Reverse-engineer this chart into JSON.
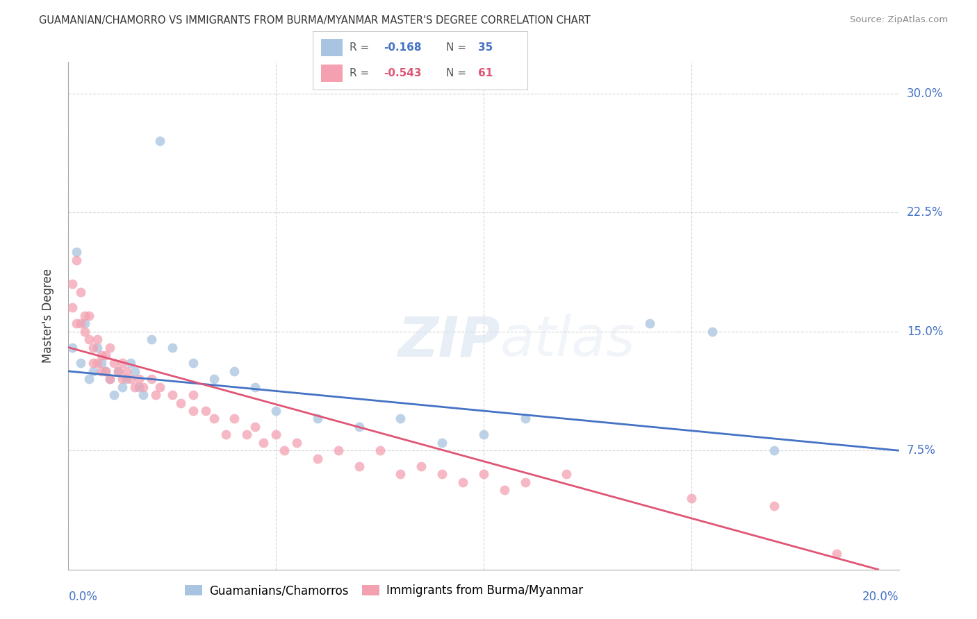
{
  "title": "GUAMANIAN/CHAMORRO VS IMMIGRANTS FROM BURMA/MYANMAR MASTER'S DEGREE CORRELATION CHART",
  "source": "Source: ZipAtlas.com",
  "xlabel_blue": "0.0%",
  "xlabel_pink": "20.0%",
  "ylabel": "Master's Degree",
  "ytick_labels": [
    "7.5%",
    "15.0%",
    "22.5%",
    "30.0%"
  ],
  "ytick_values": [
    0.075,
    0.15,
    0.225,
    0.3
  ],
  "xlim": [
    0.0,
    0.2
  ],
  "ylim": [
    0.0,
    0.32
  ],
  "legend_blue_r": "-0.168",
  "legend_blue_n": "35",
  "legend_pink_r": "-0.543",
  "legend_pink_n": "61",
  "legend_label_blue": "Guamanians/Chamorros",
  "legend_label_pink": "Immigrants from Burma/Myanmar",
  "blue_color": "#a8c4e0",
  "pink_color": "#f4a0b0",
  "trendline_blue": "#4472c4",
  "trendline_pink": "#e05575",
  "blue_scatter_x": [
    0.001,
    0.002,
    0.003,
    0.004,
    0.005,
    0.006,
    0.007,
    0.008,
    0.009,
    0.01,
    0.011,
    0.012,
    0.013,
    0.014,
    0.015,
    0.016,
    0.017,
    0.018,
    0.02,
    0.022,
    0.025,
    0.03,
    0.035,
    0.04,
    0.045,
    0.05,
    0.06,
    0.07,
    0.08,
    0.09,
    0.1,
    0.11,
    0.14,
    0.155,
    0.17
  ],
  "blue_scatter_y": [
    0.14,
    0.2,
    0.13,
    0.155,
    0.12,
    0.125,
    0.14,
    0.13,
    0.125,
    0.12,
    0.11,
    0.125,
    0.115,
    0.12,
    0.13,
    0.125,
    0.115,
    0.11,
    0.145,
    0.27,
    0.14,
    0.13,
    0.12,
    0.125,
    0.115,
    0.1,
    0.095,
    0.09,
    0.095,
    0.08,
    0.085,
    0.095,
    0.155,
    0.15,
    0.075
  ],
  "pink_scatter_x": [
    0.001,
    0.001,
    0.002,
    0.002,
    0.003,
    0.003,
    0.004,
    0.004,
    0.005,
    0.005,
    0.006,
    0.006,
    0.007,
    0.007,
    0.008,
    0.008,
    0.009,
    0.009,
    0.01,
    0.01,
    0.011,
    0.012,
    0.013,
    0.013,
    0.014,
    0.015,
    0.016,
    0.017,
    0.018,
    0.02,
    0.021,
    0.022,
    0.025,
    0.027,
    0.03,
    0.03,
    0.033,
    0.035,
    0.038,
    0.04,
    0.043,
    0.045,
    0.047,
    0.05,
    0.052,
    0.055,
    0.06,
    0.065,
    0.07,
    0.075,
    0.08,
    0.085,
    0.09,
    0.095,
    0.1,
    0.105,
    0.11,
    0.12,
    0.15,
    0.17,
    0.185
  ],
  "pink_scatter_y": [
    0.18,
    0.165,
    0.195,
    0.155,
    0.175,
    0.155,
    0.16,
    0.15,
    0.16,
    0.145,
    0.14,
    0.13,
    0.145,
    0.13,
    0.135,
    0.125,
    0.135,
    0.125,
    0.14,
    0.12,
    0.13,
    0.125,
    0.13,
    0.12,
    0.125,
    0.12,
    0.115,
    0.12,
    0.115,
    0.12,
    0.11,
    0.115,
    0.11,
    0.105,
    0.11,
    0.1,
    0.1,
    0.095,
    0.085,
    0.095,
    0.085,
    0.09,
    0.08,
    0.085,
    0.075,
    0.08,
    0.07,
    0.075,
    0.065,
    0.075,
    0.06,
    0.065,
    0.06,
    0.055,
    0.06,
    0.05,
    0.055,
    0.06,
    0.045,
    0.04,
    0.01
  ],
  "watermark_text": "ZIPatlas",
  "background_color": "#ffffff"
}
